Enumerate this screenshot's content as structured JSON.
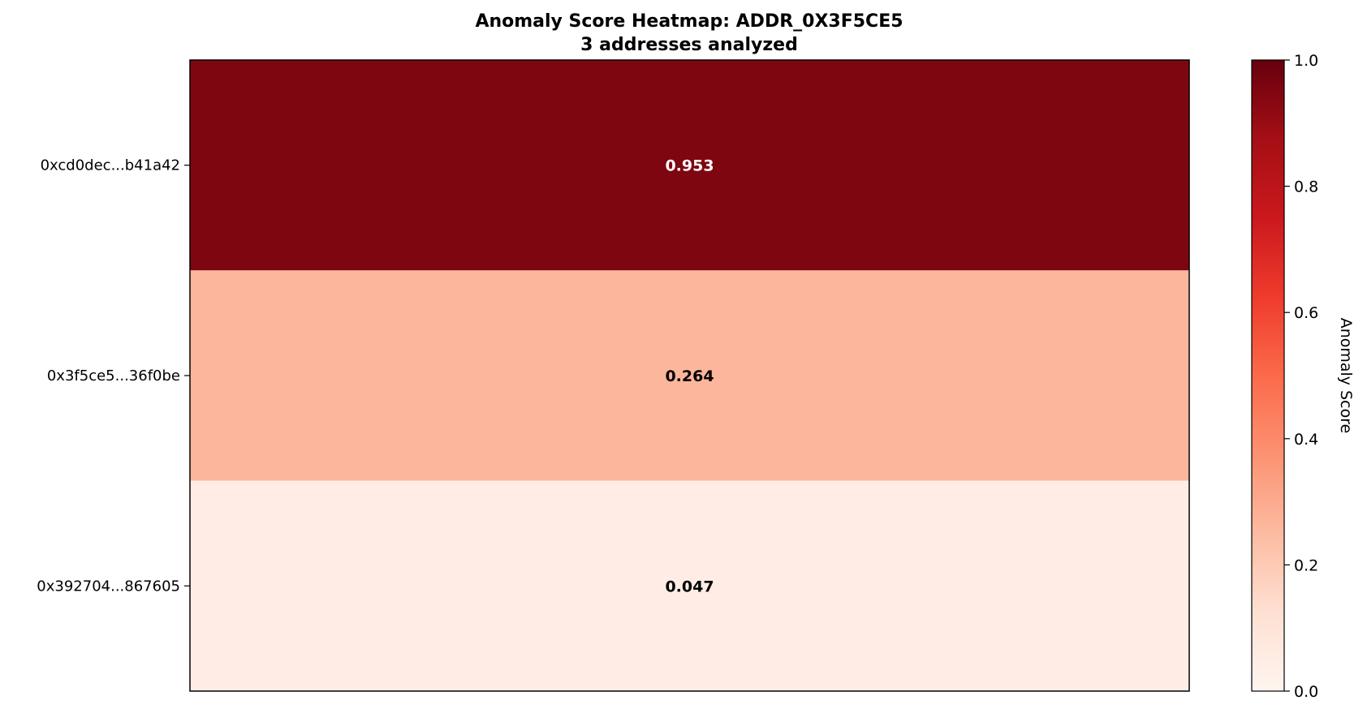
{
  "chart_data": {
    "type": "heatmap",
    "title": "Anomaly Score Heatmap: ADDR_0X3F5CE5",
    "subtitle": "3 addresses analyzed",
    "rows": [
      "0xcd0dec...b41a42",
      "0x3f5ce5...36f0be",
      "0x392704...867605"
    ],
    "values": [
      0.953,
      0.264,
      0.047
    ],
    "value_labels": [
      "0.953",
      "0.264",
      "0.047"
    ],
    "colorbar": {
      "label": "Anomaly Score",
      "range": [
        0.0,
        1.0
      ],
      "ticks": [
        "0.0",
        "0.2",
        "0.4",
        "0.6",
        "0.8",
        "1.0"
      ],
      "colormap": "Reds"
    },
    "grid": false
  }
}
